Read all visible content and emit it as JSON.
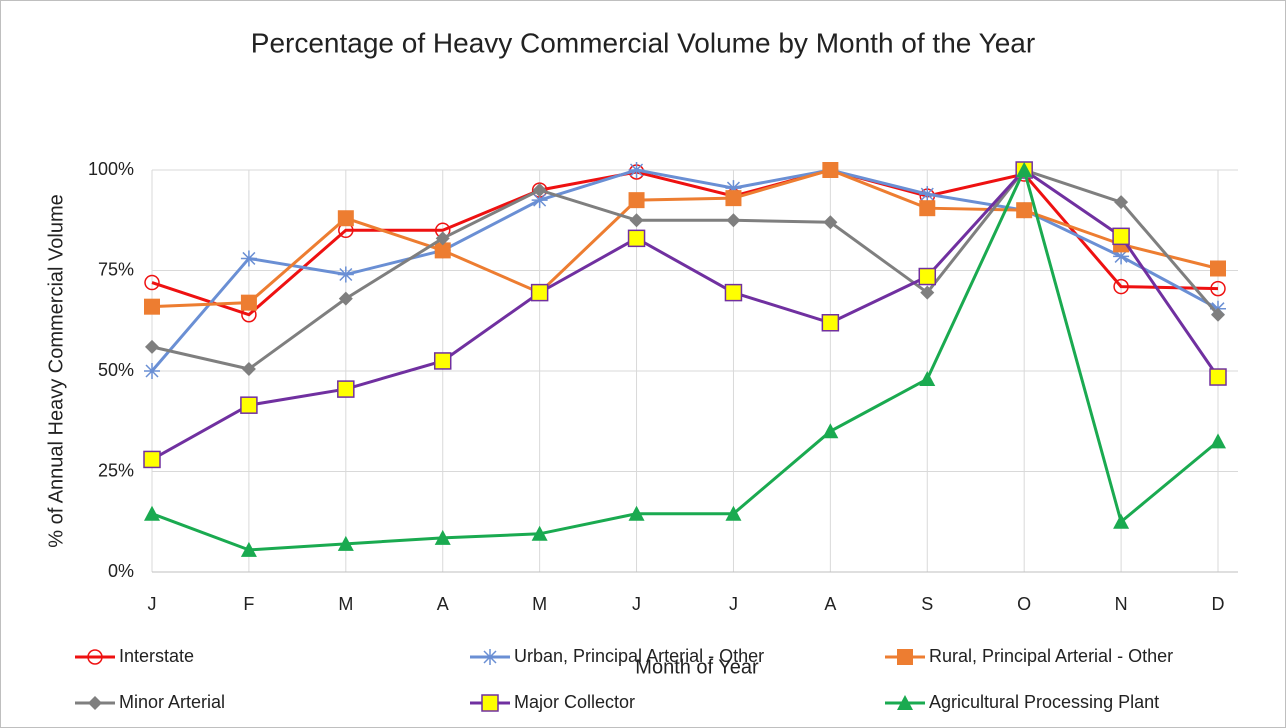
{
  "chart_data": {
    "type": "line",
    "title": "Percentage of Heavy Commercial Volume by Month of the Year",
    "x_label": "Month of Year",
    "y_label": "% of Annual Heavy Commercial Volume",
    "categories": [
      "J",
      "F",
      "M",
      "A",
      "M",
      "J",
      "J",
      "A",
      "S",
      "O",
      "N",
      "D"
    ],
    "ylim": [
      0,
      100
    ],
    "yticks": [
      {
        "value": 0,
        "label": "0%"
      },
      {
        "value": 25,
        "label": "25%"
      },
      {
        "value": 50,
        "label": "50%"
      },
      {
        "value": 75,
        "label": "75%"
      },
      {
        "value": 100,
        "label": "100%"
      }
    ],
    "grid": true,
    "series": [
      {
        "name": "Interstate",
        "color": "#ee1111",
        "marker": "circle",
        "values": [
          72,
          64,
          85,
          85,
          95,
          99.5,
          93.5,
          100,
          93.5,
          99,
          71,
          70.5
        ]
      },
      {
        "name": "Urban, Principal Arterial - Other",
        "color": "#6a8fd4",
        "marker": "asterisk",
        "values": [
          50,
          78,
          74,
          80,
          92.5,
          100,
          95.5,
          100,
          94,
          90,
          78.5,
          65.5
        ]
      },
      {
        "name": "Rural, Principal Arterial - Other",
        "color": "#ed7d31",
        "marker": "square",
        "values": [
          66,
          67,
          88,
          80,
          69.5,
          92.5,
          93,
          100,
          90.5,
          90,
          81.5,
          75.5
        ]
      },
      {
        "name": "Minor Arterial",
        "color": "#7f7f7f",
        "marker": "diamond",
        "values": [
          56,
          50.5,
          68,
          83,
          95,
          87.5,
          87.5,
          87,
          69.5,
          100,
          92,
          64
        ]
      },
      {
        "name": "Major Collector",
        "color": "#7030a0",
        "marker": "yellow-square",
        "values": [
          28,
          41.5,
          45.5,
          52.5,
          69.5,
          83,
          69.5,
          62,
          73.5,
          100,
          83.5,
          48.5
        ]
      },
      {
        "name": "Agricultural Processing Plant",
        "color": "#1aaa50",
        "marker": "triangle",
        "values": [
          14.5,
          5.5,
          7,
          8.5,
          9.5,
          14.5,
          14.5,
          35,
          48,
          100,
          12.5,
          32.5
        ]
      }
    ]
  }
}
